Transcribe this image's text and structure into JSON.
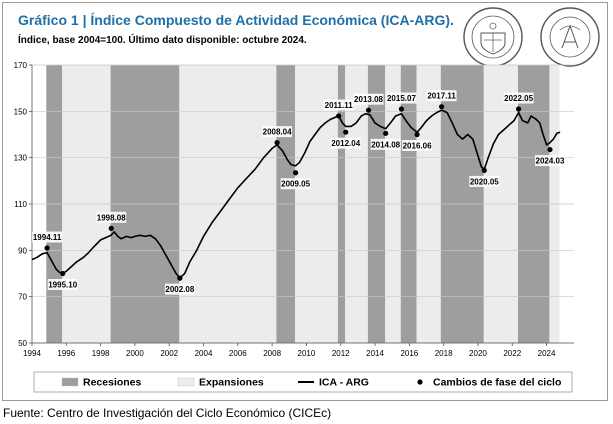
{
  "header": {
    "title": "Gráfico 1 | Índice Compuesto de Actividad Económica (ICA-ARG).",
    "subtitle": "Índice, base 2004=100. Último dato disponible: octubre 2024."
  },
  "footer": {
    "source": "Fuente: Centro de Investigación del Ciclo Económico (CICEc)"
  },
  "logos": [
    {
      "name": "bolsa-de-comercio-de-santa-fe-seal",
      "text": "BOLSA DE COMERCIO DE SANTA FE"
    },
    {
      "name": "bolsa-de-comercio-de-rosario-seal",
      "text": "BOLSA DE COMERCIO DE ROSARIO"
    }
  ],
  "colors": {
    "recession": "#9e9e9e",
    "expansion": "#ececec",
    "line": "#000000",
    "title": "#1f6fa8"
  },
  "chart_data": {
    "type": "line",
    "title": "",
    "xlabel": "",
    "ylabel": "",
    "xlim": [
      1994,
      2025.6
    ],
    "ylim": [
      50,
      170
    ],
    "x_ticks": [
      "1994",
      "1996",
      "1998",
      "2000",
      "2002",
      "2004",
      "2006",
      "2008",
      "2010",
      "2012",
      "2014",
      "2016",
      "2018",
      "2020",
      "2022",
      "2024"
    ],
    "y_ticks": [
      "50",
      "70",
      "90",
      "110",
      "130",
      "150",
      "170"
    ],
    "grid": "horizontal",
    "legend_position": "bottom",
    "legend": [
      "Recesiones",
      "Expansiones",
      "ICA - ARG",
      "Cambios de fase del ciclo"
    ],
    "shaded_ranges": {
      "recessions": [
        [
          "1994.11",
          "1995.10"
        ],
        [
          "1998.08",
          "2002.08"
        ],
        [
          "2008.04",
          "2009.05"
        ],
        [
          "2011.11",
          "2012.04"
        ],
        [
          "2013.08",
          "2014.08"
        ],
        [
          "2015.07",
          "2016.06"
        ],
        [
          "2017.11",
          "2020.05"
        ],
        [
          "2022.05",
          "2024.03"
        ]
      ],
      "expansions": [
        [
          "1995.10",
          "1998.08"
        ],
        [
          "2002.08",
          "2008.04"
        ],
        [
          "2009.05",
          "2011.11"
        ],
        [
          "2012.04",
          "2013.08"
        ],
        [
          "2014.08",
          "2015.07"
        ],
        [
          "2016.06",
          "2017.11"
        ],
        [
          "2020.05",
          "2022.05"
        ],
        [
          "2024.03",
          "2024.10"
        ]
      ]
    },
    "series": [
      {
        "name": "ICA - ARG",
        "x": [
          1994.0,
          1994.3,
          1994.6,
          1994.88,
          1995.1,
          1995.4,
          1995.6,
          1995.79,
          1996.0,
          1996.3,
          1996.6,
          1997.0,
          1997.3,
          1997.6,
          1998.0,
          1998.3,
          1998.6,
          1998.8,
          1999.0,
          1999.2,
          1999.5,
          1999.8,
          2000.0,
          2000.3,
          2000.6,
          2000.9,
          2001.2,
          2001.5,
          2001.8,
          2002.1,
          2002.4,
          2002.62,
          2002.9,
          2003.2,
          2003.6,
          2004.0,
          2004.5,
          2005.0,
          2005.5,
          2006.0,
          2006.5,
          2007.0,
          2007.5,
          2008.0,
          2008.29,
          2008.6,
          2008.9,
          2009.1,
          2009.37,
          2009.6,
          2009.9,
          2010.2,
          2010.5,
          2010.8,
          2011.1,
          2011.4,
          2011.7,
          2011.88,
          2012.1,
          2012.29,
          2012.6,
          2012.9,
          2013.2,
          2013.45,
          2013.7,
          2014.0,
          2014.3,
          2014.62,
          2014.9,
          2015.2,
          2015.54,
          2015.8,
          2016.1,
          2016.45,
          2016.7,
          2017.0,
          2017.3,
          2017.6,
          2017.88,
          2018.2,
          2018.5,
          2018.8,
          2019.1,
          2019.4,
          2019.7,
          2019.95,
          2020.2,
          2020.37,
          2020.6,
          2020.9,
          2021.2,
          2021.5,
          2021.8,
          2022.1,
          2022.37,
          2022.6,
          2022.9,
          2023.1,
          2023.4,
          2023.6,
          2023.8,
          2024.0,
          2024.2,
          2024.4,
          2024.6,
          2024.79
        ],
        "y": [
          86,
          87,
          88.5,
          89,
          86,
          82,
          80.5,
          80,
          81,
          83,
          85,
          87,
          89,
          91.5,
          94.5,
          95.5,
          96.5,
          98,
          96,
          95,
          96,
          95.5,
          96,
          96.5,
          96,
          96.5,
          95,
          92,
          88,
          84,
          80,
          78,
          80,
          85,
          90,
          96,
          102,
          107,
          112,
          117,
          121,
          125,
          130,
          134,
          135.5,
          133,
          129,
          127,
          126.5,
          128,
          132,
          137,
          140,
          143,
          145,
          146.5,
          147.5,
          148,
          145,
          143.5,
          143.5,
          145,
          148,
          149,
          148.5,
          145,
          143.5,
          142.5,
          145,
          148,
          149,
          146,
          143,
          141,
          143,
          146,
          148,
          149.5,
          150.5,
          149.5,
          145,
          140,
          138,
          140,
          138,
          132,
          126,
          125,
          130,
          136,
          140,
          142,
          144,
          146,
          149.5,
          146,
          145,
          148,
          146.5,
          145,
          140,
          135.5,
          136.5,
          138,
          140.5,
          141
        ]
      }
    ],
    "turning_points": [
      {
        "label": "1994.11",
        "x": 1994.88,
        "y": 91,
        "type": "peak"
      },
      {
        "label": "1995.10",
        "x": 1995.79,
        "y": 80,
        "type": "trough"
      },
      {
        "label": "1998.08",
        "x": 1998.62,
        "y": 99.5,
        "type": "peak"
      },
      {
        "label": "2002.08",
        "x": 2002.62,
        "y": 78,
        "type": "trough"
      },
      {
        "label": "2008.04",
        "x": 2008.29,
        "y": 136.5,
        "type": "peak"
      },
      {
        "label": "2009.05",
        "x": 2009.37,
        "y": 123.5,
        "type": "trough"
      },
      {
        "label": "2011.11",
        "x": 2011.88,
        "y": 148,
        "type": "peak"
      },
      {
        "label": "2012.04",
        "x": 2012.29,
        "y": 141,
        "type": "trough"
      },
      {
        "label": "2013.08",
        "x": 2013.62,
        "y": 150.5,
        "type": "peak"
      },
      {
        "label": "2014.08",
        "x": 2014.62,
        "y": 140.5,
        "type": "trough"
      },
      {
        "label": "2015.07",
        "x": 2015.54,
        "y": 151,
        "type": "peak"
      },
      {
        "label": "2016.06",
        "x": 2016.45,
        "y": 140,
        "type": "trough"
      },
      {
        "label": "2017.11",
        "x": 2017.88,
        "y": 152,
        "type": "peak"
      },
      {
        "label": "2020.05",
        "x": 2020.37,
        "y": 124.5,
        "type": "trough"
      },
      {
        "label": "2022.05",
        "x": 2022.37,
        "y": 151,
        "type": "peak"
      },
      {
        "label": "2024.03",
        "x": 2024.2,
        "y": 133.5,
        "type": "trough"
      }
    ]
  }
}
